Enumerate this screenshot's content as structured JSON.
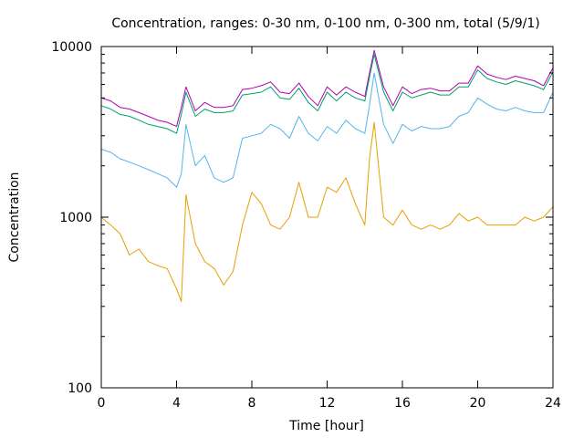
{
  "chart_data": {
    "type": "line",
    "title": "Concentration, ranges: 0-30 nm, 0-100 nm, 0-300 nm, total (5/9/1)",
    "xlabel": "Time [hour]",
    "ylabel": "Concentration",
    "xlim": [
      0,
      24
    ],
    "ylim": [
      100,
      10000
    ],
    "yscale": "log",
    "grid": false,
    "legend": "none",
    "xticks": [
      0,
      4,
      8,
      12,
      16,
      20,
      24
    ],
    "xtick_labels": [
      "0",
      "4",
      "8",
      "12",
      "16",
      "20",
      "24"
    ],
    "yticks": [
      100,
      1000,
      10000
    ],
    "ytick_labels": [
      "100",
      "1000",
      "10000"
    ],
    "x": [
      0,
      0.5,
      1,
      1.5,
      2,
      2.5,
      3,
      3.5,
      4,
      4.25,
      4.5,
      5,
      5.5,
      6,
      6.5,
      7,
      7.5,
      8,
      8.5,
      9,
      9.5,
      10,
      10.5,
      11,
      11.5,
      12,
      12.5,
      13,
      13.5,
      14,
      14.25,
      14.5,
      15,
      15.5,
      16,
      16.5,
      17,
      17.5,
      18,
      18.5,
      19,
      19.5,
      20,
      20.5,
      21,
      21.5,
      22,
      22.5,
      23,
      23.5,
      24
    ],
    "series": [
      {
        "color": "#b000b0",
        "values": [
          5000,
          4800,
          4400,
          4300,
          4100,
          3900,
          3700,
          3600,
          3400,
          4400,
          5800,
          4200,
          4700,
          4400,
          4400,
          4500,
          5600,
          5700,
          5900,
          6200,
          5400,
          5300,
          6100,
          5100,
          4500,
          5800,
          5200,
          5800,
          5400,
          5100,
          7000,
          9500,
          5800,
          4500,
          5800,
          5300,
          5600,
          5700,
          5500,
          5500,
          6100,
          6100,
          7700,
          6900,
          6600,
          6400,
          6700,
          6500,
          6300,
          5900,
          7500
        ]
      },
      {
        "color": "#009e73",
        "values": [
          4500,
          4300,
          4000,
          3900,
          3700,
          3500,
          3400,
          3300,
          3100,
          4000,
          5400,
          3900,
          4300,
          4100,
          4100,
          4200,
          5200,
          5300,
          5400,
          5800,
          5000,
          4900,
          5700,
          4700,
          4200,
          5400,
          4800,
          5400,
          5000,
          4800,
          6600,
          9000,
          5400,
          4200,
          5400,
          5000,
          5200,
          5400,
          5200,
          5200,
          5800,
          5800,
          7300,
          6500,
          6200,
          6000,
          6300,
          6100,
          5900,
          5600,
          7100
        ]
      },
      {
        "color": "#56b4e9",
        "values": [
          2500,
          2400,
          2200,
          2100,
          2000,
          1900,
          1800,
          1700,
          1500,
          1800,
          3500,
          2000,
          2300,
          1700,
          1600,
          1700,
          2900,
          3000,
          3100,
          3500,
          3300,
          2900,
          3900,
          3100,
          2800,
          3400,
          3100,
          3700,
          3300,
          3100,
          4500,
          7000,
          3500,
          2700,
          3500,
          3200,
          3400,
          3300,
          3300,
          3400,
          3900,
          4100,
          5000,
          4600,
          4300,
          4200,
          4400,
          4200,
          4100,
          4100,
          5400
        ]
      },
      {
        "color": "#e69f00",
        "values": [
          1000,
          900,
          800,
          600,
          650,
          550,
          520,
          500,
          380,
          320,
          1350,
          700,
          550,
          500,
          400,
          480,
          900,
          1400,
          1200,
          900,
          850,
          1000,
          1600,
          1000,
          1000,
          1500,
          1400,
          1700,
          1200,
          900,
          2200,
          3600,
          1000,
          900,
          1100,
          900,
          850,
          900,
          850,
          900,
          1050,
          950,
          1000,
          900,
          900,
          900,
          900,
          1000,
          950,
          1000,
          1150
        ]
      }
    ]
  }
}
